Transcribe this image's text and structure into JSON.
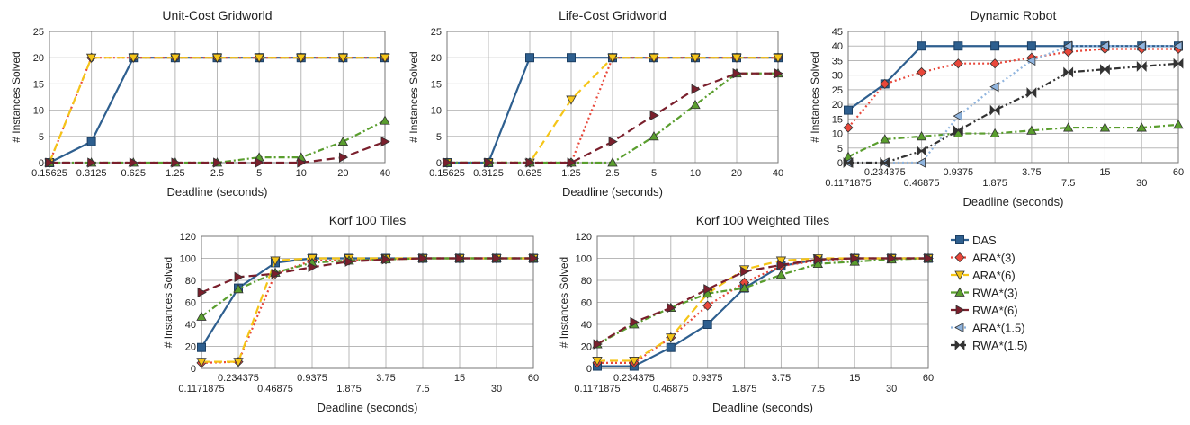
{
  "figure": {
    "legend": [
      {
        "name": "DAS",
        "color": "#2e5f8f",
        "marker": "square",
        "dash": "solid"
      },
      {
        "name": "ARA*(3)",
        "color": "#e8473a",
        "marker": "diamond",
        "dash": "dot"
      },
      {
        "name": "ARA*(6)",
        "color": "#f5c518",
        "marker": "triangle-down",
        "dash": "dash"
      },
      {
        "name": "RWA*(3)",
        "color": "#5a9e2e",
        "marker": "triangle-up",
        "dash": "dashdot"
      },
      {
        "name": "RWA*(6)",
        "color": "#7a1f2c",
        "marker": "triangle-right",
        "dash": "dash"
      },
      {
        "name": "ARA*(1.5)",
        "color": "#8fb4de",
        "marker": "triangle-left",
        "dash": "dot"
      },
      {
        "name": "RWA*(1.5)",
        "color": "#333333",
        "marker": "bowtie",
        "dash": "dashdotdot"
      }
    ]
  },
  "chart_data": [
    {
      "type": "line",
      "title": "Unit-Cost Gridworld",
      "xlabel": "Deadline (seconds)",
      "ylabel": "# Instances Solved",
      "x": [
        "0.15625",
        "0.3125",
        "0.625",
        "1.25",
        "2.5",
        "5",
        "10",
        "20",
        "40"
      ],
      "ylim": [
        0,
        25
      ],
      "yticks": [
        0,
        5,
        10,
        15,
        20,
        25
      ],
      "grid": true,
      "series": [
        {
          "name": "DAS",
          "values": [
            0,
            4,
            20,
            20,
            20,
            20,
            20,
            20,
            20
          ]
        },
        {
          "name": "ARA*(3)",
          "values": [
            0,
            20,
            20,
            20,
            20,
            20,
            20,
            20,
            20
          ]
        },
        {
          "name": "ARA*(6)",
          "values": [
            0,
            20,
            20,
            20,
            20,
            20,
            20,
            20,
            20
          ]
        },
        {
          "name": "RWA*(3)",
          "values": [
            0,
            0,
            0,
            0,
            0,
            1,
            1,
            4,
            8
          ]
        },
        {
          "name": "RWA*(6)",
          "values": [
            0,
            0,
            0,
            0,
            0,
            0,
            0,
            1,
            4
          ]
        }
      ]
    },
    {
      "type": "line",
      "title": "Life-Cost Gridworld",
      "xlabel": "Deadline (seconds)",
      "ylabel": "# Instances Solved",
      "x": [
        "0.15625",
        "0.3125",
        "0.625",
        "1.25",
        "2.5",
        "5",
        "10",
        "20",
        "40"
      ],
      "ylim": [
        0,
        25
      ],
      "yticks": [
        0,
        5,
        10,
        15,
        20,
        25
      ],
      "grid": true,
      "series": [
        {
          "name": "DAS",
          "values": [
            0,
            0,
            20,
            20,
            20,
            20,
            20,
            20,
            20
          ]
        },
        {
          "name": "ARA*(3)",
          "values": [
            0,
            0,
            0,
            0,
            20,
            20,
            20,
            20,
            20
          ]
        },
        {
          "name": "ARA*(6)",
          "values": [
            0,
            0,
            0,
            12,
            20,
            20,
            20,
            20,
            20
          ]
        },
        {
          "name": "RWA*(3)",
          "values": [
            0,
            0,
            0,
            0,
            0,
            5,
            11,
            17,
            17
          ]
        },
        {
          "name": "RWA*(6)",
          "values": [
            0,
            0,
            0,
            0,
            4,
            9,
            14,
            17,
            17
          ]
        }
      ]
    },
    {
      "type": "line",
      "title": "Dynamic Robot",
      "xlabel": "Deadline (seconds)",
      "ylabel": "# Instances Solved",
      "x": [
        "0.1171875",
        "0.234375",
        "0.46875",
        "0.9375",
        "1.875",
        "3.75",
        "7.5",
        "15",
        "30",
        "60"
      ],
      "ylim": [
        0,
        45
      ],
      "yticks": [
        0,
        5,
        10,
        15,
        20,
        25,
        30,
        35,
        40,
        45
      ],
      "grid": true,
      "series": [
        {
          "name": "DAS",
          "values": [
            18,
            27,
            40,
            40,
            40,
            40,
            40,
            40,
            40,
            40
          ]
        },
        {
          "name": "ARA*(3)",
          "values": [
            12,
            27,
            31,
            34,
            34,
            36,
            38,
            39,
            39,
            39
          ]
        },
        {
          "name": "RWA*(3)",
          "values": [
            2,
            8,
            9,
            10,
            10,
            11,
            12,
            12,
            12,
            13
          ]
        },
        {
          "name": "ARA*(1.5)",
          "values": [
            0,
            0,
            0,
            16,
            26,
            35,
            40,
            40,
            40,
            40
          ]
        },
        {
          "name": "RWA*(1.5)",
          "values": [
            0,
            0,
            4,
            11,
            18,
            24,
            31,
            32,
            33,
            34
          ]
        }
      ]
    },
    {
      "type": "line",
      "title": "Korf 100 Tiles",
      "xlabel": "Deadline (seconds)",
      "ylabel": "# Instances Solved",
      "x": [
        "0.1171875",
        "0.234375",
        "0.46875",
        "0.9375",
        "1.875",
        "3.75",
        "7.5",
        "15",
        "30",
        "60"
      ],
      "ylim": [
        0,
        120
      ],
      "yticks": [
        0,
        20,
        40,
        60,
        80,
        100,
        120
      ],
      "grid": true,
      "series": [
        {
          "name": "DAS",
          "values": [
            19,
            73,
            96,
            100,
            100,
            100,
            100,
            100,
            100,
            100
          ]
        },
        {
          "name": "ARA*(3)",
          "values": [
            5,
            6,
            86,
            98,
            98,
            99,
            100,
            100,
            100,
            100
          ]
        },
        {
          "name": "ARA*(6)",
          "values": [
            6,
            6,
            98,
            100,
            100,
            100,
            100,
            100,
            100,
            100
          ]
        },
        {
          "name": "RWA*(3)",
          "values": [
            47,
            72,
            87,
            96,
            98,
            99,
            100,
            100,
            100,
            100
          ]
        },
        {
          "name": "RWA*(6)",
          "values": [
            69,
            83,
            86,
            92,
            97,
            99,
            100,
            100,
            100,
            100
          ]
        }
      ]
    },
    {
      "type": "line",
      "title": "Korf 100 Weighted Tiles",
      "xlabel": "Deadline (seconds)",
      "ylabel": "# Instances Solved",
      "x": [
        "0.1171875",
        "0.234375",
        "0.46875",
        "0.9375",
        "1.875",
        "3.75",
        "7.5",
        "15",
        "30",
        "60"
      ],
      "ylim": [
        0,
        120
      ],
      "yticks": [
        0,
        20,
        40,
        60,
        80,
        100,
        120
      ],
      "grid": true,
      "series": [
        {
          "name": "DAS",
          "values": [
            2,
            2,
            19,
            40,
            73,
            93,
            99,
            100,
            100,
            100
          ]
        },
        {
          "name": "ARA*(3)",
          "values": [
            5,
            5,
            28,
            57,
            78,
            93,
            98,
            100,
            100,
            100
          ]
        },
        {
          "name": "ARA*(6)",
          "values": [
            7,
            7,
            28,
            68,
            90,
            98,
            100,
            100,
            100,
            100
          ]
        },
        {
          "name": "RWA*(3)",
          "values": [
            22,
            40,
            55,
            68,
            73,
            85,
            95,
            97,
            99,
            100
          ]
        },
        {
          "name": "RWA*(6)",
          "values": [
            22,
            42,
            55,
            72,
            88,
            94,
            99,
            100,
            100,
            100
          ]
        }
      ]
    }
  ]
}
